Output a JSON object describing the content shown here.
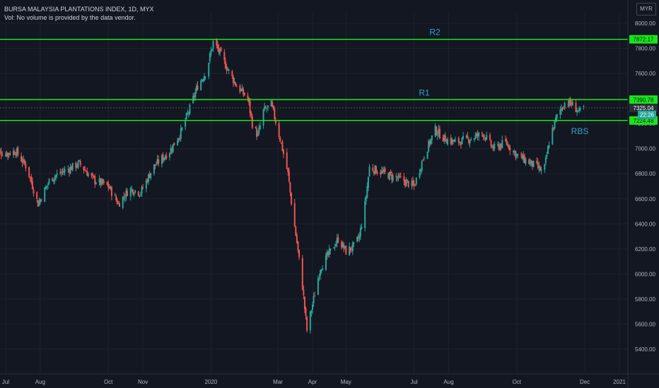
{
  "header": {
    "title": "BURSA MALAYSIA PLANTATIONS INDEX, 1D, MYX",
    "subtitle": "Vol: No volume is provided by the data vendor."
  },
  "currency": "MYR",
  "colors": {
    "background": "#131722",
    "grid": "#1e222d",
    "up": "#26a69a",
    "down": "#ef5350",
    "level_line": "#19e619",
    "level_text": "#2ea3c8",
    "axis_text": "#b2b5be",
    "price_tag": "#2a2e39"
  },
  "chart_data": {
    "type": "candlestick",
    "ylim": [
      5300,
      8100
    ],
    "y_ticks": [
      5400,
      5600,
      5800,
      6000,
      6200,
      6400,
      6600,
      6800,
      7000,
      7200,
      7400,
      7600,
      7800,
      8000
    ],
    "y_tick_labels": [
      "5400.00",
      "5600.00",
      "5800.00",
      "6000.00",
      "6200.00",
      "6400.00",
      "6600.00",
      "6800.00",
      "7000.00",
      "7200.00",
      "7400.00",
      "7600.00",
      "7800.00",
      "8000.00"
    ],
    "x_ticks": [
      {
        "label": "Jul",
        "date": "2019-07-01"
      },
      {
        "label": "Aug",
        "date": "2019-08-01"
      },
      {
        "label": "Oct",
        "date": "2019-10-01"
      },
      {
        "label": "Nov",
        "date": "2019-11-01"
      },
      {
        "label": "2020",
        "date": "2020-01-01"
      },
      {
        "label": "Mar",
        "date": "2020-03-01"
      },
      {
        "label": "Apr",
        "date": "2020-04-01"
      },
      {
        "label": "May",
        "date": "2020-05-01"
      },
      {
        "label": "Jul",
        "date": "2020-07-01"
      },
      {
        "label": "Aug",
        "date": "2020-08-01"
      },
      {
        "label": "Oct",
        "date": "2020-10-01"
      },
      {
        "label": "Dec",
        "date": "2020-12-01"
      },
      {
        "label": "2021",
        "date": "2021-01-01"
      }
    ],
    "levels": [
      {
        "name": "R2",
        "value": 7872.17,
        "label": "7872.17"
      },
      {
        "name": "R1",
        "value": 7390.78,
        "label": "7390.78"
      },
      {
        "name": "RBS",
        "value": 7224.48,
        "label": "7224.48"
      }
    ],
    "last_price": {
      "value": 7325.04,
      "label": "7325.04"
    },
    "countdown": "22:26",
    "series": [
      {
        "date": "2019-06-20",
        "close": 6990
      },
      {
        "date": "2019-07-01",
        "close": 6960
      },
      {
        "date": "2019-07-10",
        "close": 6980
      },
      {
        "date": "2019-07-20",
        "close": 6850
      },
      {
        "date": "2019-07-30",
        "close": 6560
      },
      {
        "date": "2019-08-10",
        "close": 6760
      },
      {
        "date": "2019-08-22",
        "close": 6820
      },
      {
        "date": "2019-09-05",
        "close": 6880
      },
      {
        "date": "2019-09-18",
        "close": 6750
      },
      {
        "date": "2019-10-01",
        "close": 6700
      },
      {
        "date": "2019-10-10",
        "close": 6560
      },
      {
        "date": "2019-10-20",
        "close": 6680
      },
      {
        "date": "2019-10-30",
        "close": 6650
      },
      {
        "date": "2019-11-10",
        "close": 6850
      },
      {
        "date": "2019-11-25",
        "close": 6980
      },
      {
        "date": "2019-12-05",
        "close": 7130
      },
      {
        "date": "2019-12-13",
        "close": 7320
      },
      {
        "date": "2019-12-20",
        "close": 7500
      },
      {
        "date": "2019-12-28",
        "close": 7620
      },
      {
        "date": "2020-01-03",
        "close": 7850
      },
      {
        "date": "2020-01-08",
        "close": 7780
      },
      {
        "date": "2020-01-15",
        "close": 7650
      },
      {
        "date": "2020-01-24",
        "close": 7500
      },
      {
        "date": "2020-02-03",
        "close": 7400
      },
      {
        "date": "2020-02-07",
        "close": 7200
      },
      {
        "date": "2020-02-12",
        "close": 7100
      },
      {
        "date": "2020-02-17",
        "close": 7300
      },
      {
        "date": "2020-02-24",
        "close": 7350
      },
      {
        "date": "2020-03-01",
        "close": 7150
      },
      {
        "date": "2020-03-05",
        "close": 7000
      },
      {
        "date": "2020-03-10",
        "close": 6800
      },
      {
        "date": "2020-03-14",
        "close": 6500
      },
      {
        "date": "2020-03-18",
        "close": 6250
      },
      {
        "date": "2020-03-23",
        "close": 5900
      },
      {
        "date": "2020-03-27",
        "close": 5550
      },
      {
        "date": "2020-04-02",
        "close": 5800
      },
      {
        "date": "2020-04-08",
        "close": 6050
      },
      {
        "date": "2020-04-15",
        "close": 6150
      },
      {
        "date": "2020-04-24",
        "close": 6280
      },
      {
        "date": "2020-05-01",
        "close": 6180
      },
      {
        "date": "2020-05-08",
        "close": 6220
      },
      {
        "date": "2020-05-13",
        "close": 6300
      },
      {
        "date": "2020-05-18",
        "close": 6550
      },
      {
        "date": "2020-05-22",
        "close": 6850
      },
      {
        "date": "2020-06-05",
        "close": 6800
      },
      {
        "date": "2020-06-20",
        "close": 6750
      },
      {
        "date": "2020-07-01",
        "close": 6700
      },
      {
        "date": "2020-07-10",
        "close": 6950
      },
      {
        "date": "2020-07-20",
        "close": 7150
      },
      {
        "date": "2020-07-28",
        "close": 7080
      },
      {
        "date": "2020-08-07",
        "close": 7050
      },
      {
        "date": "2020-08-20",
        "close": 7080
      },
      {
        "date": "2020-09-01",
        "close": 7120
      },
      {
        "date": "2020-09-10",
        "close": 7000
      },
      {
        "date": "2020-09-21",
        "close": 7050
      },
      {
        "date": "2020-10-01",
        "close": 6950
      },
      {
        "date": "2020-10-10",
        "close": 6900
      },
      {
        "date": "2020-10-20",
        "close": 6850
      },
      {
        "date": "2020-10-25",
        "close": 6800
      },
      {
        "date": "2020-10-31",
        "close": 7100
      },
      {
        "date": "2020-11-07",
        "close": 7280
      },
      {
        "date": "2020-11-14",
        "close": 7380
      },
      {
        "date": "2020-11-20",
        "close": 7350
      },
      {
        "date": "2020-11-26",
        "close": 7290
      },
      {
        "date": "2020-11-30",
        "close": 7325
      }
    ]
  }
}
